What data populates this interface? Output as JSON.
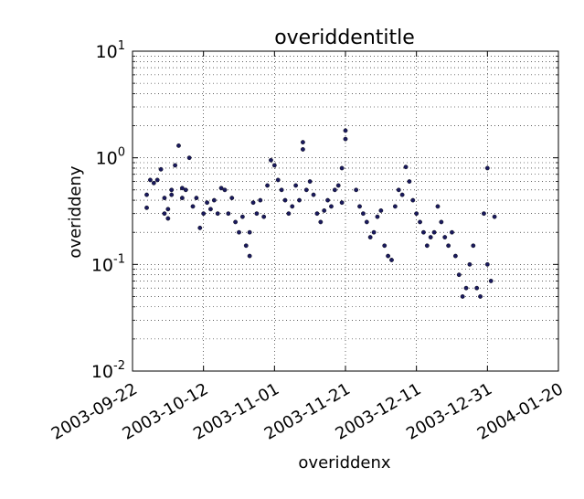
{
  "chart_data": {
    "type": "scatter",
    "title": "overiddentitle",
    "xlabel": "overiddenx",
    "ylabel": "overiddeny",
    "y_scale": "log",
    "ylim": [
      0.01,
      10
    ],
    "xlim": [
      "2003-09-22",
      "2004-01-20"
    ],
    "x_ticks": [
      "2003-09-22",
      "2003-10-12",
      "2003-11-01",
      "2003-11-21",
      "2003-12-11",
      "2003-12-31",
      "2004-01-20"
    ],
    "y_ticks": [
      {
        "base": "10",
        "exp": "-2"
      },
      {
        "base": "10",
        "exp": "-1"
      },
      {
        "base": "10",
        "exp": "0"
      },
      {
        "base": "10",
        "exp": "1"
      }
    ],
    "grid": true,
    "marker_color": "#1a1a5e",
    "series": [
      {
        "x": [
          "2003-09-26",
          "2003-09-26",
          "2003-09-27",
          "2003-09-28",
          "2003-09-29",
          "2003-09-30",
          "2003-10-01",
          "2003-10-01",
          "2003-10-02",
          "2003-10-02",
          "2003-10-03",
          "2003-10-03",
          "2003-10-04",
          "2003-10-05",
          "2003-10-06",
          "2003-10-06",
          "2003-10-07",
          "2003-10-08",
          "2003-10-09",
          "2003-10-10",
          "2003-10-11",
          "2003-10-12",
          "2003-10-13",
          "2003-10-14",
          "2003-10-15",
          "2003-10-16",
          "2003-10-17",
          "2003-10-18",
          "2003-10-19",
          "2003-10-20",
          "2003-10-21",
          "2003-10-22",
          "2003-10-23",
          "2003-10-24",
          "2003-10-25",
          "2003-10-25",
          "2003-10-26",
          "2003-10-27",
          "2003-10-28",
          "2003-10-29",
          "2003-10-30",
          "2003-10-31",
          "2003-11-01",
          "2003-11-02",
          "2003-11-03",
          "2003-11-04",
          "2003-11-05",
          "2003-11-06",
          "2003-11-07",
          "2003-11-08",
          "2003-11-09",
          "2003-11-09",
          "2003-11-10",
          "2003-11-11",
          "2003-11-12",
          "2003-11-13",
          "2003-11-14",
          "2003-11-15",
          "2003-11-16",
          "2003-11-17",
          "2003-11-18",
          "2003-11-19",
          "2003-11-20",
          "2003-11-20",
          "2003-11-21",
          "2003-11-21",
          "2003-11-24",
          "2003-11-25",
          "2003-11-26",
          "2003-11-27",
          "2003-11-28",
          "2003-11-29",
          "2003-11-30",
          "2003-12-01",
          "2003-12-02",
          "2003-12-03",
          "2003-12-04",
          "2003-12-05",
          "2003-12-06",
          "2003-12-07",
          "2003-12-08",
          "2003-12-09",
          "2003-12-10",
          "2003-12-11",
          "2003-12-12",
          "2003-12-13",
          "2003-12-14",
          "2003-12-15",
          "2003-12-16",
          "2003-12-17",
          "2003-12-18",
          "2003-12-19",
          "2003-12-20",
          "2003-12-21",
          "2003-12-22",
          "2003-12-23",
          "2003-12-24",
          "2003-12-25",
          "2003-12-26",
          "2003-12-27",
          "2003-12-28",
          "2003-12-29",
          "2003-12-30",
          "2003-12-31",
          "2003-12-31",
          "2004-01-01",
          "2004-01-02"
        ],
        "y": [
          0.34,
          0.45,
          0.62,
          0.58,
          0.62,
          0.78,
          0.42,
          0.3,
          0.27,
          0.33,
          0.5,
          0.45,
          0.85,
          1.3,
          0.52,
          0.42,
          0.5,
          1.0,
          0.35,
          0.42,
          0.22,
          0.3,
          0.38,
          0.33,
          0.4,
          0.3,
          0.52,
          0.5,
          0.3,
          0.42,
          0.25,
          0.2,
          0.28,
          0.15,
          0.2,
          0.12,
          0.38,
          0.3,
          0.4,
          0.28,
          0.55,
          0.95,
          0.85,
          0.62,
          0.5,
          0.4,
          0.3,
          0.35,
          0.55,
          0.4,
          1.4,
          1.2,
          0.5,
          0.6,
          0.45,
          0.3,
          0.25,
          0.32,
          0.4,
          0.35,
          0.5,
          0.55,
          0.38,
          0.8,
          1.8,
          1.5,
          0.5,
          0.35,
          0.3,
          0.25,
          0.18,
          0.2,
          0.28,
          0.32,
          0.15,
          0.12,
          0.11,
          0.35,
          0.5,
          0.45,
          0.82,
          0.6,
          0.4,
          0.3,
          0.25,
          0.2,
          0.15,
          0.18,
          0.2,
          0.35,
          0.25,
          0.18,
          0.15,
          0.2,
          0.12,
          0.08,
          0.05,
          0.06,
          0.1,
          0.15,
          0.06,
          0.05,
          0.3,
          0.8,
          0.1,
          0.07,
          0.28
        ]
      }
    ]
  }
}
